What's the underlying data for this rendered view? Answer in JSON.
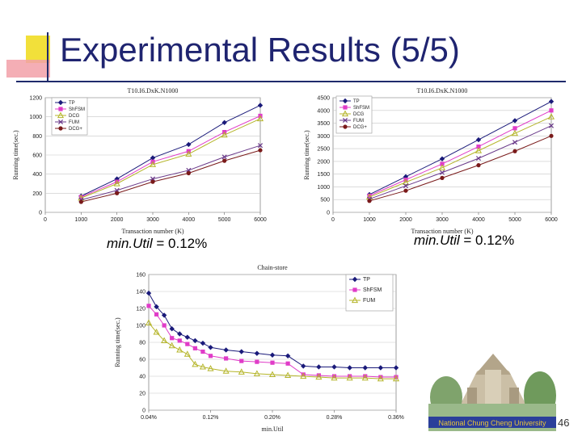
{
  "slide": {
    "title": "Experimental Results (5/5)",
    "page_number": "46",
    "caption_left": {
      "label": "min.Util",
      "value": " = 0.12%"
    },
    "caption_right": {
      "label": "min.Util",
      "value": " = 0.12%"
    },
    "logo_text": "National Chung Cheng University"
  },
  "chart_data": [
    {
      "type": "line",
      "title": "T10.I6.DxK.N1000",
      "xlabel": "Transaction number (K)",
      "ylabel": "Running time(sec.)",
      "x": [
        1000,
        2000,
        3000,
        4000,
        5000,
        6000
      ],
      "xlim": [
        0,
        6000
      ],
      "xticks": [
        0,
        1000,
        2000,
        3000,
        4000,
        5000,
        6000
      ],
      "xtick_labels": [
        "0",
        "1000",
        "2000",
        "3000",
        "4000",
        "5000",
        "6000"
      ],
      "ylim": [
        0,
        1200
      ],
      "yticks": [
        0,
        200,
        400,
        600,
        800,
        1000,
        1200
      ],
      "series": [
        {
          "name": "TP",
          "color": "#1a1a7a",
          "marker": "diamond",
          "values": [
            170,
            350,
            570,
            710,
            940,
            1120
          ]
        },
        {
          "name": "ShFSM",
          "color": "#e03cc8",
          "marker": "square",
          "values": [
            160,
            320,
            530,
            640,
            840,
            1010
          ]
        },
        {
          "name": "DCG",
          "color": "#b5b52a",
          "marker": "triangle",
          "values": [
            150,
            300,
            500,
            610,
            810,
            980
          ]
        },
        {
          "name": "FUM",
          "color": "#6a3a8a",
          "marker": "x",
          "values": [
            130,
            230,
            350,
            440,
            580,
            700
          ]
        },
        {
          "name": "DCG+",
          "color": "#7a1a1a",
          "marker": "circle",
          "values": [
            110,
            200,
            320,
            410,
            540,
            650
          ]
        }
      ]
    },
    {
      "type": "line",
      "title": "T10.I6.DxK.N1000",
      "xlabel": "Transaction number (K)",
      "ylabel": "Running time(sec.)",
      "x": [
        1000,
        2000,
        3000,
        4000,
        5000,
        6000
      ],
      "xlim": [
        0,
        6000
      ],
      "xticks": [
        0,
        1000,
        2000,
        3000,
        4000,
        5000,
        6000
      ],
      "xtick_labels": [
        "0",
        "1000",
        "2000",
        "3000",
        "4000",
        "5000",
        "6000"
      ],
      "ylim": [
        0,
        4500
      ],
      "yticks": [
        0,
        500,
        1000,
        1500,
        2000,
        2500,
        3000,
        3500,
        4000,
        4500
      ],
      "series": [
        {
          "name": "TP",
          "color": "#1a1a7a",
          "marker": "diamond",
          "values": [
            700,
            1400,
            2100,
            2850,
            3600,
            4350
          ]
        },
        {
          "name": "ShFSM",
          "color": "#e03cc8",
          "marker": "square",
          "values": [
            650,
            1280,
            1900,
            2580,
            3300,
            4000
          ]
        },
        {
          "name": "DCG",
          "color": "#b5b52a",
          "marker": "triangle",
          "values": [
            600,
            1180,
            1750,
            2420,
            3100,
            3750
          ]
        },
        {
          "name": "FUM",
          "color": "#6a3a8a",
          "marker": "x",
          "values": [
            520,
            1040,
            1560,
            2120,
            2750,
            3400
          ]
        },
        {
          "name": "DCG+",
          "color": "#7a1a1a",
          "marker": "circle",
          "values": [
            450,
            850,
            1350,
            1850,
            2400,
            3000
          ]
        }
      ]
    },
    {
      "type": "line",
      "title": "Chain-store",
      "xlabel": "min.Util",
      "ylabel": "Running time(sec.)",
      "x": [
        0.04,
        0.05,
        0.06,
        0.07,
        0.08,
        0.09,
        0.1,
        0.11,
        0.12,
        0.14,
        0.16,
        0.18,
        0.2,
        0.22,
        0.24,
        0.26,
        0.28,
        0.3,
        0.32,
        0.34,
        0.36
      ],
      "xlim": [
        0.04,
        0.36
      ],
      "xticks": [
        0.04,
        0.12,
        0.2,
        0.28,
        0.36
      ],
      "xtick_labels": [
        "0.04%",
        "0.12%",
        "0.20%",
        "0.28%",
        "0.36%"
      ],
      "ylim": [
        0,
        160
      ],
      "yticks": [
        0,
        20,
        40,
        60,
        80,
        100,
        120,
        140,
        160
      ],
      "series": [
        {
          "name": "TP",
          "color": "#1a1a7a",
          "marker": "diamond",
          "values": [
            138,
            122,
            112,
            96,
            90,
            86,
            82,
            79,
            74,
            71,
            69,
            67,
            65,
            64,
            52,
            51,
            51,
            50,
            50,
            50,
            50
          ]
        },
        {
          "name": "ShFSM",
          "color": "#e03cc8",
          "marker": "square",
          "values": [
            123,
            113,
            100,
            85,
            82,
            78,
            73,
            69,
            64,
            61,
            58,
            57,
            56,
            55,
            42,
            41,
            40,
            40,
            40,
            39,
            39
          ]
        },
        {
          "name": "FUM",
          "color": "#b5b52a",
          "marker": "triangle",
          "values": [
            103,
            92,
            82,
            76,
            71,
            66,
            54,
            51,
            49,
            46,
            45,
            43,
            42,
            41,
            40,
            39,
            38,
            38,
            38,
            37,
            37
          ]
        }
      ]
    }
  ]
}
